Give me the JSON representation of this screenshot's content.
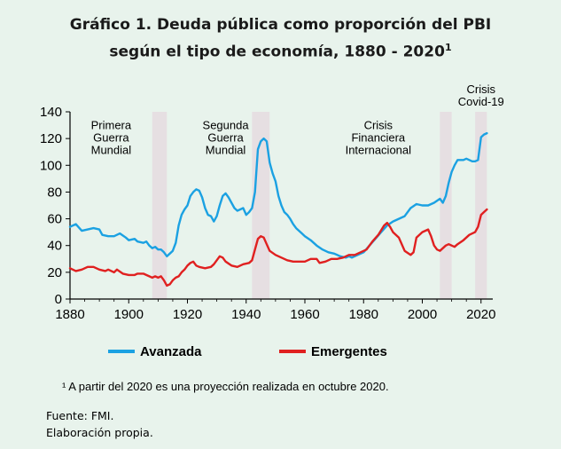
{
  "title_line1": "Gráfico 1. Deuda pública como proporción del PBI",
  "title_line2": "según el tipo de economía, 1880 - 2020",
  "title_superscript": "1",
  "footnote": "¹ A partir del 2020 es una proyección realizada en octubre 2020.",
  "source_line1": "Fuente: FMI.",
  "source_line2": "Elaboración propia.",
  "chart_data": {
    "type": "line",
    "xlim": [
      1880,
      2024
    ],
    "ylim": [
      0,
      140
    ],
    "xticks": [
      1880,
      1900,
      1920,
      1940,
      1960,
      1980,
      2000,
      2020
    ],
    "yticks": [
      0,
      20,
      40,
      60,
      80,
      100,
      120,
      140
    ],
    "grid": false,
    "legend": "bottom",
    "shaded_periods": [
      [
        1908,
        1913
      ],
      [
        1942,
        1948
      ],
      [
        2006,
        2010
      ],
      [
        2018,
        2022
      ]
    ],
    "annotations": [
      {
        "lines": [
          "Primera",
          "Guerra",
          "Mundial"
        ],
        "x": 1894,
        "y": 127
      },
      {
        "lines": [
          "Segunda",
          "Guerra",
          "Mundial"
        ],
        "x": 1933,
        "y": 127
      },
      {
        "lines": [
          "Crisis",
          "Financiera",
          "Internacional"
        ],
        "x": 1985,
        "y": 127
      },
      {
        "lines": [
          "Crisis",
          "Covid-19"
        ],
        "x": 2020,
        "y": 154
      }
    ],
    "series": [
      {
        "name": "Avanzada",
        "color": "#1ba1e2",
        "points": [
          [
            1880,
            54
          ],
          [
            1882,
            56
          ],
          [
            1884,
            51
          ],
          [
            1886,
            52
          ],
          [
            1888,
            53
          ],
          [
            1890,
            52
          ],
          [
            1891,
            48
          ],
          [
            1893,
            47
          ],
          [
            1895,
            47
          ],
          [
            1897,
            49
          ],
          [
            1899,
            46
          ],
          [
            1900,
            44
          ],
          [
            1902,
            45
          ],
          [
            1903,
            43
          ],
          [
            1905,
            42
          ],
          [
            1906,
            43
          ],
          [
            1907,
            40
          ],
          [
            1908,
            38
          ],
          [
            1909,
            39
          ],
          [
            1910,
            37
          ],
          [
            1911,
            37
          ],
          [
            1912,
            35
          ],
          [
            1913,
            32
          ],
          [
            1914,
            34
          ],
          [
            1915,
            36
          ],
          [
            1916,
            42
          ],
          [
            1917,
            55
          ],
          [
            1918,
            63
          ],
          [
            1919,
            67
          ],
          [
            1920,
            70
          ],
          [
            1921,
            77
          ],
          [
            1922,
            80
          ],
          [
            1923,
            82
          ],
          [
            1924,
            81
          ],
          [
            1925,
            76
          ],
          [
            1926,
            68
          ],
          [
            1927,
            63
          ],
          [
            1928,
            62
          ],
          [
            1929,
            58
          ],
          [
            1930,
            62
          ],
          [
            1931,
            70
          ],
          [
            1932,
            77
          ],
          [
            1933,
            79
          ],
          [
            1934,
            76
          ],
          [
            1935,
            72
          ],
          [
            1936,
            68
          ],
          [
            1937,
            66
          ],
          [
            1938,
            67
          ],
          [
            1939,
            68
          ],
          [
            1940,
            63
          ],
          [
            1941,
            65
          ],
          [
            1942,
            68
          ],
          [
            1943,
            80
          ],
          [
            1944,
            112
          ],
          [
            1945,
            118
          ],
          [
            1946,
            120
          ],
          [
            1947,
            118
          ],
          [
            1948,
            102
          ],
          [
            1949,
            94
          ],
          [
            1950,
            88
          ],
          [
            1951,
            77
          ],
          [
            1952,
            70
          ],
          [
            1953,
            65
          ],
          [
            1954,
            63
          ],
          [
            1955,
            60
          ],
          [
            1956,
            56
          ],
          [
            1957,
            53
          ],
          [
            1958,
            51
          ],
          [
            1959,
            49
          ],
          [
            1960,
            47
          ],
          [
            1962,
            44
          ],
          [
            1964,
            40
          ],
          [
            1966,
            37
          ],
          [
            1968,
            35
          ],
          [
            1970,
            34
          ],
          [
            1972,
            32
          ],
          [
            1974,
            31
          ],
          [
            1975,
            32
          ],
          [
            1976,
            31
          ],
          [
            1978,
            33
          ],
          [
            1980,
            35
          ],
          [
            1982,
            40
          ],
          [
            1984,
            45
          ],
          [
            1986,
            50
          ],
          [
            1988,
            55
          ],
          [
            1990,
            58
          ],
          [
            1992,
            60
          ],
          [
            1994,
            62
          ],
          [
            1996,
            68
          ],
          [
            1998,
            71
          ],
          [
            2000,
            70
          ],
          [
            2002,
            70
          ],
          [
            2004,
            72
          ],
          [
            2006,
            75
          ],
          [
            2007,
            72
          ],
          [
            2008,
            77
          ],
          [
            2009,
            87
          ],
          [
            2010,
            95
          ],
          [
            2011,
            100
          ],
          [
            2012,
            104
          ],
          [
            2013,
            104
          ],
          [
            2014,
            104
          ],
          [
            2015,
            105
          ],
          [
            2016,
            104
          ],
          [
            2017,
            103
          ],
          [
            2018,
            103
          ],
          [
            2019,
            104
          ],
          [
            2020,
            121
          ],
          [
            2021,
            123
          ],
          [
            2022,
            124
          ]
        ]
      },
      {
        "name": "Emergentes",
        "color": "#e02020",
        "points": [
          [
            1880,
            23
          ],
          [
            1882,
            21
          ],
          [
            1884,
            22
          ],
          [
            1886,
            24
          ],
          [
            1888,
            24
          ],
          [
            1890,
            22
          ],
          [
            1892,
            21
          ],
          [
            1893,
            22
          ],
          [
            1895,
            20
          ],
          [
            1896,
            22
          ],
          [
            1898,
            19
          ],
          [
            1900,
            18
          ],
          [
            1902,
            18
          ],
          [
            1903,
            19
          ],
          [
            1905,
            19
          ],
          [
            1906,
            18
          ],
          [
            1908,
            16
          ],
          [
            1909,
            17
          ],
          [
            1910,
            16
          ],
          [
            1911,
            17
          ],
          [
            1912,
            14
          ],
          [
            1913,
            10
          ],
          [
            1914,
            11
          ],
          [
            1915,
            14
          ],
          [
            1916,
            16
          ],
          [
            1917,
            17
          ],
          [
            1918,
            20
          ],
          [
            1919,
            22
          ],
          [
            1920,
            25
          ],
          [
            1921,
            27
          ],
          [
            1922,
            28
          ],
          [
            1923,
            25
          ],
          [
            1924,
            24
          ],
          [
            1926,
            23
          ],
          [
            1928,
            24
          ],
          [
            1929,
            26
          ],
          [
            1930,
            29
          ],
          [
            1931,
            32
          ],
          [
            1932,
            31
          ],
          [
            1933,
            28
          ],
          [
            1935,
            25
          ],
          [
            1937,
            24
          ],
          [
            1939,
            26
          ],
          [
            1941,
            27
          ],
          [
            1942,
            29
          ],
          [
            1943,
            37
          ],
          [
            1944,
            45
          ],
          [
            1945,
            47
          ],
          [
            1946,
            46
          ],
          [
            1947,
            41
          ],
          [
            1948,
            36
          ],
          [
            1950,
            33
          ],
          [
            1952,
            31
          ],
          [
            1954,
            29
          ],
          [
            1956,
            28
          ],
          [
            1958,
            28
          ],
          [
            1960,
            28
          ],
          [
            1962,
            30
          ],
          [
            1964,
            30
          ],
          [
            1965,
            27
          ],
          [
            1967,
            28
          ],
          [
            1969,
            30
          ],
          [
            1971,
            30
          ],
          [
            1973,
            31
          ],
          [
            1975,
            33
          ],
          [
            1977,
            33
          ],
          [
            1979,
            35
          ],
          [
            1981,
            37
          ],
          [
            1983,
            43
          ],
          [
            1985,
            48
          ],
          [
            1987,
            55
          ],
          [
            1988,
            57
          ],
          [
            1989,
            54
          ],
          [
            1990,
            50
          ],
          [
            1992,
            46
          ],
          [
            1994,
            36
          ],
          [
            1996,
            33
          ],
          [
            1997,
            35
          ],
          [
            1998,
            46
          ],
          [
            2000,
            50
          ],
          [
            2002,
            52
          ],
          [
            2003,
            47
          ],
          [
            2004,
            40
          ],
          [
            2005,
            37
          ],
          [
            2006,
            36
          ],
          [
            2007,
            38
          ],
          [
            2008,
            40
          ],
          [
            2009,
            41
          ],
          [
            2010,
            40
          ],
          [
            2011,
            39
          ],
          [
            2012,
            41
          ],
          [
            2014,
            44
          ],
          [
            2016,
            48
          ],
          [
            2018,
            50
          ],
          [
            2019,
            54
          ],
          [
            2020,
            63
          ],
          [
            2021,
            65
          ],
          [
            2022,
            67
          ]
        ]
      }
    ]
  }
}
